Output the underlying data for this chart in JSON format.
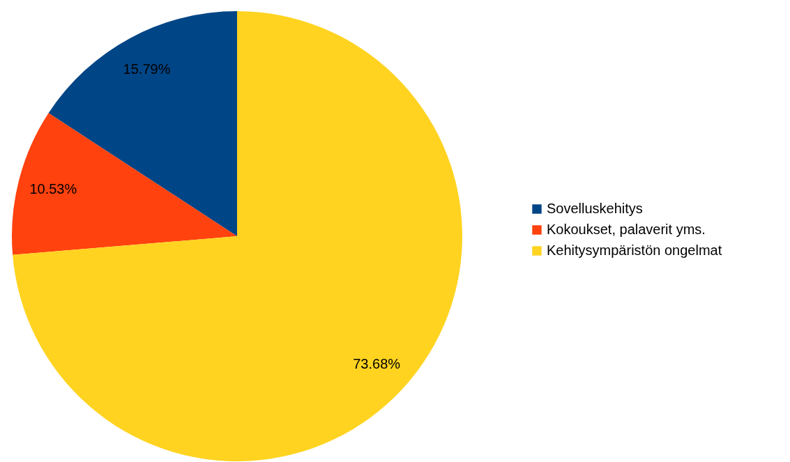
{
  "chart_data": {
    "type": "pie",
    "categories": [
      "Sovelluskehitys",
      "Kokoukset, palaverit yms.",
      "Kehitysympäristön ongelmat"
    ],
    "values": [
      15.79,
      10.53,
      73.68
    ],
    "colors": [
      "#004586",
      "#ff420e",
      "#ffd320"
    ],
    "value_labels": [
      "15.79%",
      "10.53%",
      "73.68%"
    ],
    "legend": "right"
  }
}
